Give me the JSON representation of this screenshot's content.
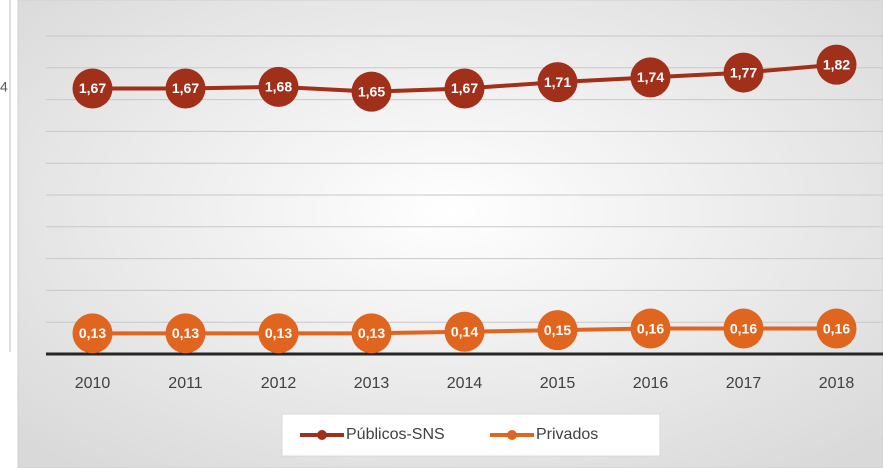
{
  "side_fragment": "4",
  "chart_data": {
    "type": "line",
    "categories": [
      "2010",
      "2011",
      "2012",
      "2013",
      "2014",
      "2015",
      "2016",
      "2017",
      "2018"
    ],
    "series": [
      {
        "name": "Públicos-SNS",
        "color": "#a1301a",
        "values": [
          1.67,
          1.67,
          1.68,
          1.65,
          1.67,
          1.71,
          1.74,
          1.77,
          1.82
        ],
        "value_labels": [
          "1,67",
          "1,67",
          "1,68",
          "1,65",
          "1,67",
          "1,71",
          "1,74",
          "1,77",
          "1,82"
        ]
      },
      {
        "name": "Privados",
        "color": "#e0651f",
        "values": [
          0.13,
          0.13,
          0.13,
          0.13,
          0.14,
          0.15,
          0.16,
          0.16,
          0.16
        ],
        "value_labels": [
          "0,13",
          "0,13",
          "0,13",
          "0,13",
          "0,14",
          "0,15",
          "0,16",
          "0,16",
          "0,16"
        ]
      }
    ],
    "ylim": [
      0,
      2
    ],
    "yticks": [
      0,
      0.2,
      0.4,
      0.6,
      0.8,
      1,
      1.2,
      1.4,
      1.6,
      1.8,
      2
    ],
    "grid": true,
    "legend": "bottom"
  }
}
